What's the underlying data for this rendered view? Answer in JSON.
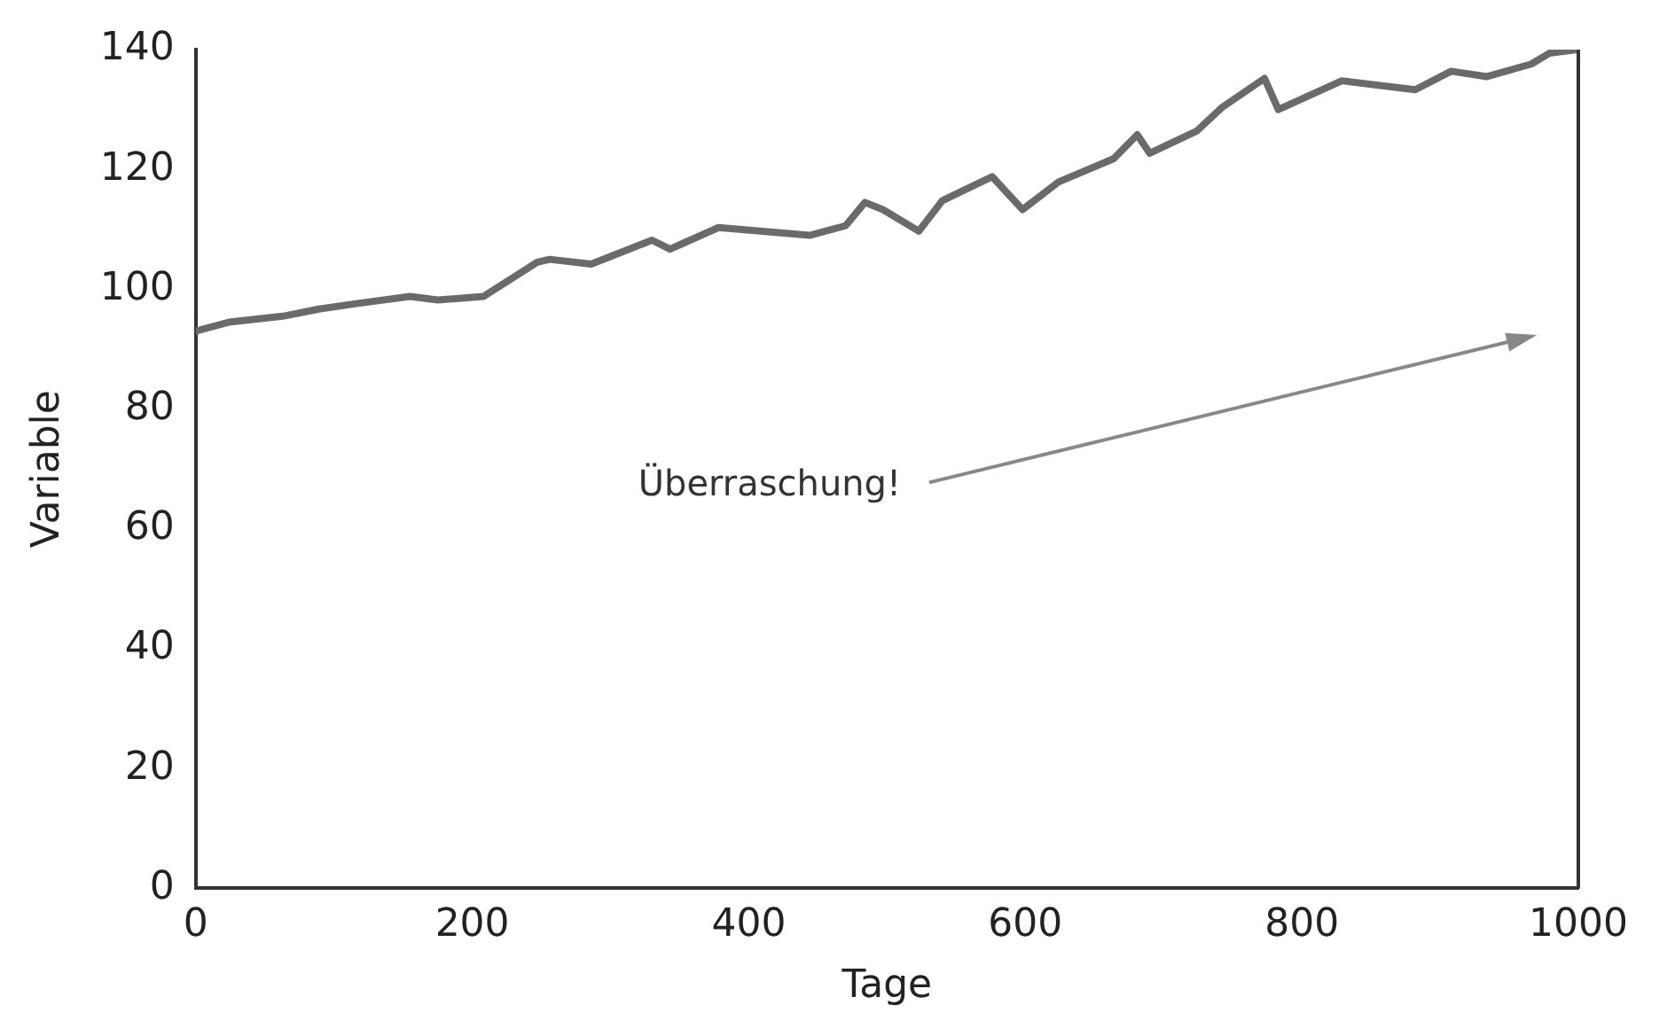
{
  "chart_data": {
    "type": "line",
    "xlabel": "Tage",
    "ylabel": "Variable",
    "x": [
      0,
      24,
      63,
      89,
      116,
      155,
      175,
      208,
      247,
      256,
      286,
      330,
      343,
      378,
      444,
      470,
      484,
      497,
      523,
      540,
      576,
      598,
      624,
      664,
      681,
      690,
      724,
      742,
      773,
      783,
      829,
      882,
      908,
      934,
      966,
      979,
      999
    ],
    "series": [
      {
        "color": "#6a6a6a",
        "values": [
          93,
          94.5,
          95.5,
          96.7,
          97.6,
          98.8,
          98.2,
          98.8,
          104.5,
          105,
          104.2,
          108.2,
          106.7,
          110.3,
          109,
          110.6,
          114.5,
          113.3,
          109.7,
          114.8,
          118.8,
          113.3,
          117.9,
          121.8,
          125.8,
          122.7,
          126.4,
          130.3,
          135.2,
          130,
          134.8,
          133.3,
          136.4,
          135.5,
          137.6,
          139.4,
          140
        ]
      }
    ],
    "xlim": [
      0,
      1000
    ],
    "xticks": [
      0,
      200,
      400,
      600,
      800,
      1000
    ],
    "ylim": [
      0,
      140
    ],
    "yticks": [
      0,
      20,
      40,
      60,
      80,
      100,
      120,
      140
    ],
    "grid": false,
    "legend": false,
    "marker": "none",
    "line_style": "solid",
    "annotations": [
      "Überraschung!"
    ]
  }
}
